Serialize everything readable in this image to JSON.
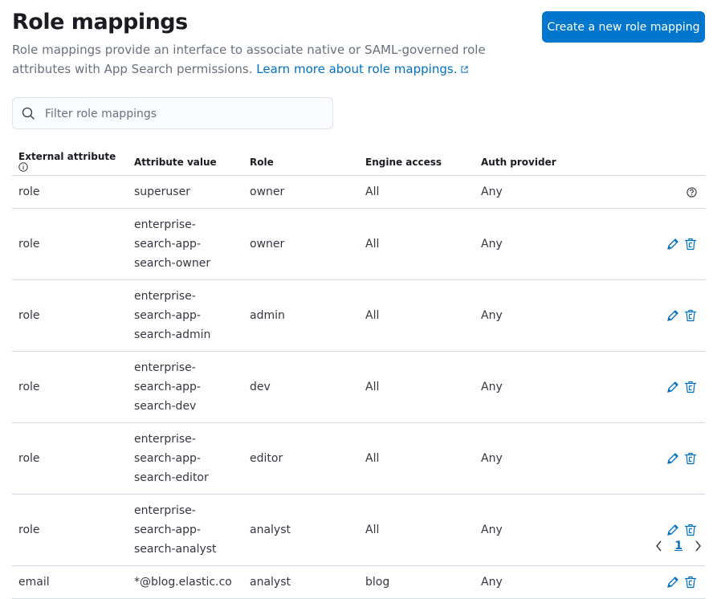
{
  "header": {
    "title": "Role mappings",
    "description": "Role mappings provide an interface to associate native or SAML-governed role attributes with App Search permissions.",
    "learn_more": "Learn more about role mappings.",
    "create_button": "Create a new role mapping"
  },
  "search": {
    "placeholder": "Filter role mappings",
    "value": ""
  },
  "table": {
    "columns": [
      "External attribute",
      "Attribute value",
      "Role",
      "Engine access",
      "Auth provider"
    ],
    "rows": [
      {
        "attribute": "role",
        "value": "superuser",
        "role": "owner",
        "engines": "All",
        "provider": "Any",
        "action": "help"
      },
      {
        "attribute": "role",
        "value": "enterprise-search-app-search-owner",
        "role": "owner",
        "engines": "All",
        "provider": "Any",
        "action": "edit-delete"
      },
      {
        "attribute": "role",
        "value": "enterprise-search-app-search-admin",
        "role": "admin",
        "engines": "All",
        "provider": "Any",
        "action": "edit-delete"
      },
      {
        "attribute": "role",
        "value": "enterprise-search-app-search-dev",
        "role": "dev",
        "engines": "All",
        "provider": "Any",
        "action": "edit-delete"
      },
      {
        "attribute": "role",
        "value": "enterprise-search-app-search-editor",
        "role": "editor",
        "engines": "All",
        "provider": "Any",
        "action": "edit-delete"
      },
      {
        "attribute": "role",
        "value": "enterprise-search-app-search-analyst",
        "role": "analyst",
        "engines": "All",
        "provider": "Any",
        "action": "edit-delete"
      },
      {
        "attribute": "email",
        "value": "*@blog.elastic.co",
        "role": "analyst",
        "engines": "blog",
        "provider": "Any",
        "action": "edit-delete"
      }
    ]
  },
  "pagination": {
    "current": "1"
  },
  "colors": {
    "primary": "#0077cc",
    "link": "#0071c2"
  }
}
